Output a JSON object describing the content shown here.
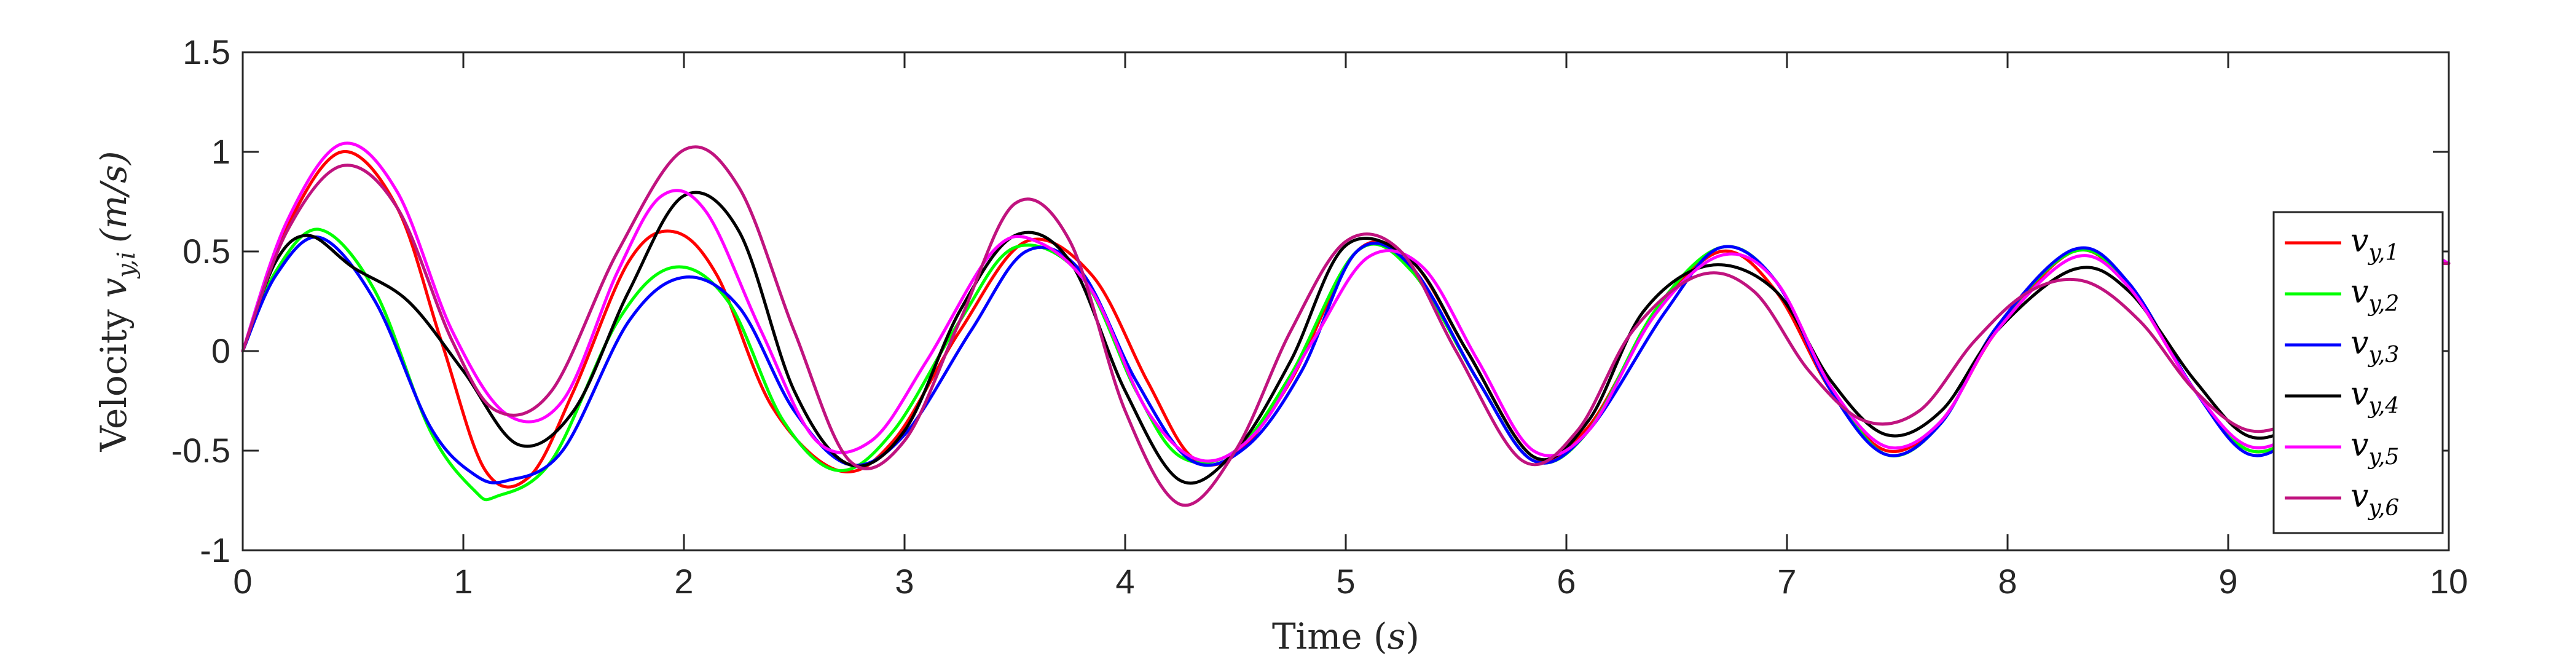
{
  "chart_data": {
    "type": "line",
    "title": "",
    "xlabel": "Time (s)",
    "xlabel_parts": {
      "text": "Time ",
      "open": "(",
      "var": "s",
      "close": ")"
    },
    "ylabel": "Velocity v_{y,i} (m/s)",
    "ylabel_parts": {
      "text": "Velocity ",
      "var": "v",
      "sub": "y,i",
      "unit": "(m/s)"
    },
    "xlim": [
      0,
      10
    ],
    "ylim": [
      -1,
      1.5
    ],
    "xticks": [
      0,
      1,
      2,
      3,
      4,
      5,
      6,
      7,
      8,
      9,
      10
    ],
    "xtick_labels": [
      "0",
      "1",
      "2",
      "3",
      "4",
      "5",
      "6",
      "7",
      "8",
      "9",
      "10"
    ],
    "yticks": [
      -1,
      -0.5,
      0,
      0.5,
      1,
      1.5
    ],
    "ytick_labels": [
      "-1",
      "-0.5",
      "0",
      "0.5",
      "1",
      "1.5"
    ],
    "grid": false,
    "legend_position": "right",
    "series": [
      {
        "name": "v_{y,1}",
        "name_var": "v",
        "name_sub": "y,1",
        "color": "#ff0000",
        "x": [
          0,
          0.2,
          0.45,
          0.7,
          0.9,
          1.1,
          1.3,
          1.5,
          1.75,
          1.95,
          2.15,
          2.4,
          2.7,
          2.95,
          3.25,
          3.55,
          3.85,
          4.1,
          4.3,
          4.5,
          4.75,
          5.05,
          5.3,
          5.55,
          5.85,
          6.1,
          6.4,
          6.7,
          6.95,
          7.2,
          7.45,
          7.7,
          7.95,
          8.3,
          8.55,
          8.85,
          9.1,
          9.35,
          9.6,
          9.85,
          10
        ],
        "y": [
          0,
          0.62,
          1.0,
          0.72,
          0.05,
          -0.6,
          -0.63,
          -0.2,
          0.45,
          0.6,
          0.38,
          -0.28,
          -0.6,
          -0.45,
          0.1,
          0.55,
          0.38,
          -0.15,
          -0.53,
          -0.52,
          -0.15,
          0.5,
          0.45,
          0.0,
          -0.53,
          -0.38,
          0.18,
          0.5,
          0.3,
          -0.2,
          -0.5,
          -0.35,
          0.1,
          0.5,
          0.32,
          -0.2,
          -0.5,
          -0.36,
          0.1,
          0.47,
          0.44
        ]
      },
      {
        "name": "v_{y,2}",
        "name_var": "v",
        "name_sub": "y,2",
        "color": "#00ff00",
        "x": [
          0,
          0.15,
          0.35,
          0.6,
          0.85,
          1.05,
          1.15,
          1.4,
          1.7,
          1.95,
          2.2,
          2.45,
          2.7,
          2.95,
          3.25,
          3.5,
          3.8,
          4.05,
          4.25,
          4.5,
          4.75,
          5.05,
          5.3,
          5.6,
          5.85,
          6.1,
          6.4,
          6.7,
          6.95,
          7.2,
          7.45,
          7.7,
          7.95,
          8.3,
          8.55,
          8.85,
          9.1,
          9.35,
          9.6,
          9.85,
          10
        ],
        "y": [
          0,
          0.4,
          0.61,
          0.3,
          -0.4,
          -0.7,
          -0.73,
          -0.55,
          0.15,
          0.42,
          0.25,
          -0.35,
          -0.6,
          -0.4,
          0.15,
          0.52,
          0.38,
          -0.2,
          -0.53,
          -0.5,
          -0.12,
          0.5,
          0.4,
          -0.15,
          -0.55,
          -0.4,
          0.2,
          0.52,
          0.35,
          -0.18,
          -0.52,
          -0.36,
          0.12,
          0.5,
          0.33,
          -0.2,
          -0.5,
          -0.36,
          0.1,
          0.47,
          0.44
        ]
      },
      {
        "name": "v_{y,3}",
        "name_var": "v",
        "name_sub": "y,3",
        "color": "#0000ff",
        "x": [
          0,
          0.15,
          0.35,
          0.6,
          0.85,
          1.05,
          1.2,
          1.45,
          1.75,
          2.0,
          2.25,
          2.5,
          2.75,
          3.0,
          3.3,
          3.55,
          3.8,
          4.05,
          4.3,
          4.55,
          4.8,
          5.05,
          5.3,
          5.6,
          5.85,
          6.1,
          6.45,
          6.7,
          6.95,
          7.2,
          7.45,
          7.7,
          7.95,
          8.3,
          8.55,
          8.85,
          9.1,
          9.35,
          9.6,
          9.85,
          10
        ],
        "y": [
          0,
          0.38,
          0.57,
          0.25,
          -0.38,
          -0.62,
          -0.65,
          -0.5,
          0.15,
          0.37,
          0.22,
          -0.3,
          -0.57,
          -0.42,
          0.1,
          0.5,
          0.4,
          -0.15,
          -0.55,
          -0.48,
          -0.1,
          0.5,
          0.42,
          -0.15,
          -0.55,
          -0.4,
          0.2,
          0.52,
          0.35,
          -0.2,
          -0.52,
          -0.36,
          0.12,
          0.51,
          0.34,
          -0.2,
          -0.52,
          -0.36,
          0.1,
          0.47,
          0.44
        ]
      },
      {
        "name": "v_{y,4}",
        "name_var": "v",
        "name_sub": "y,4",
        "color": "#000000",
        "x": [
          0,
          0.15,
          0.3,
          0.5,
          0.75,
          1.0,
          1.25,
          1.5,
          1.75,
          2.0,
          2.25,
          2.5,
          2.75,
          3.0,
          3.25,
          3.5,
          3.75,
          4.0,
          4.25,
          4.5,
          4.75,
          5.0,
          5.3,
          5.55,
          5.85,
          6.1,
          6.35,
          6.65,
          6.95,
          7.2,
          7.45,
          7.7,
          7.95,
          8.3,
          8.55,
          8.85,
          9.1,
          9.35,
          9.6,
          9.85,
          10
        ],
        "y": [
          0,
          0.45,
          0.58,
          0.42,
          0.25,
          -0.1,
          -0.47,
          -0.3,
          0.3,
          0.78,
          0.6,
          -0.2,
          -0.57,
          -0.4,
          0.2,
          0.58,
          0.45,
          -0.2,
          -0.65,
          -0.5,
          -0.05,
          0.53,
          0.45,
          0.0,
          -0.53,
          -0.35,
          0.2,
          0.43,
          0.3,
          -0.15,
          -0.42,
          -0.3,
          0.1,
          0.41,
          0.3,
          -0.15,
          -0.43,
          -0.32,
          0.05,
          0.45,
          0.44
        ]
      },
      {
        "name": "v_{y,5}",
        "name_var": "v",
        "name_sub": "y,5",
        "color": "#ff00ff",
        "x": [
          0,
          0.2,
          0.45,
          0.7,
          0.95,
          1.2,
          1.45,
          1.7,
          1.9,
          2.1,
          2.35,
          2.6,
          2.85,
          3.1,
          3.4,
          3.6,
          3.85,
          4.1,
          4.35,
          4.6,
          4.85,
          5.1,
          5.35,
          5.6,
          5.85,
          6.1,
          6.4,
          6.7,
          6.95,
          7.2,
          7.45,
          7.7,
          7.95,
          8.3,
          8.55,
          8.85,
          9.1,
          9.35,
          9.6,
          9.85,
          10
        ],
        "y": [
          0,
          0.65,
          1.04,
          0.8,
          0.1,
          -0.32,
          -0.25,
          0.4,
          0.78,
          0.7,
          0.1,
          -0.45,
          -0.45,
          -0.05,
          0.5,
          0.55,
          0.3,
          -0.3,
          -0.55,
          -0.4,
          0.05,
          0.47,
          0.42,
          -0.05,
          -0.5,
          -0.4,
          0.18,
          0.48,
          0.35,
          -0.18,
          -0.48,
          -0.35,
          0.1,
          0.47,
          0.32,
          -0.2,
          -0.48,
          -0.35,
          0.1,
          0.47,
          0.44
        ]
      },
      {
        "name": "v_{y,6}",
        "name_var": "v",
        "name_sub": "y,6",
        "color": "#c0137f",
        "x": [
          0,
          0.2,
          0.45,
          0.7,
          0.95,
          1.15,
          1.4,
          1.7,
          2.0,
          2.25,
          2.5,
          2.75,
          3.0,
          3.25,
          3.5,
          3.75,
          4.0,
          4.25,
          4.5,
          4.75,
          5.0,
          5.25,
          5.5,
          5.8,
          6.05,
          6.3,
          6.6,
          6.85,
          7.1,
          7.35,
          7.6,
          7.85,
          8.1,
          8.35,
          8.6,
          8.85,
          9.1,
          9.35,
          9.6,
          9.85,
          10
        ],
        "y": [
          0,
          0.6,
          0.93,
          0.72,
          0.05,
          -0.3,
          -0.2,
          0.5,
          1.01,
          0.82,
          0.1,
          -0.55,
          -0.45,
          0.15,
          0.74,
          0.55,
          -0.3,
          -0.77,
          -0.5,
          0.1,
          0.55,
          0.5,
          0.0,
          -0.55,
          -0.4,
          0.1,
          0.38,
          0.3,
          -0.1,
          -0.35,
          -0.3,
          0.05,
          0.3,
          0.35,
          0.15,
          -0.2,
          -0.4,
          -0.3,
          0.05,
          0.4,
          0.44
        ]
      }
    ]
  }
}
